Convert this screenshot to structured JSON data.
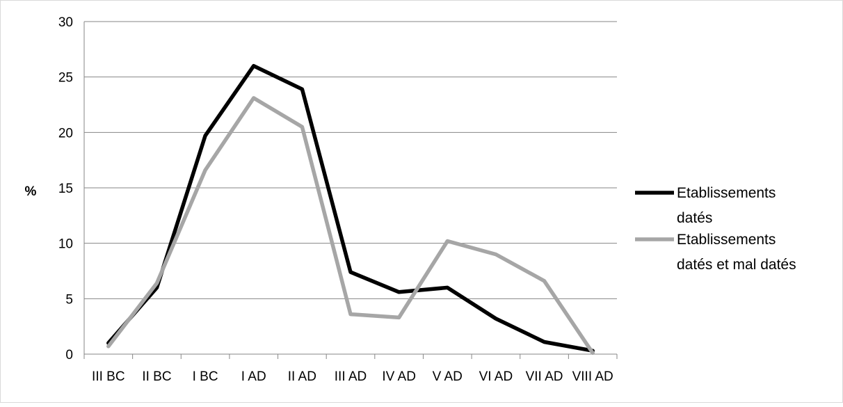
{
  "chart_data": {
    "type": "line",
    "title": "",
    "xlabel": "",
    "ylabel": "%",
    "ylim": [
      0,
      30
    ],
    "yticks": [
      0,
      5,
      10,
      15,
      20,
      25,
      30
    ],
    "grid": true,
    "legend_position": "right",
    "categories": [
      "III BC",
      "II BC",
      "I BC",
      "I AD",
      "II AD",
      "III AD",
      "IV AD",
      "V AD",
      "VI AD",
      "VII AD",
      "VIII AD"
    ],
    "series": [
      {
        "name": "Etablissements datés",
        "color": "#000000",
        "values": [
          1.0,
          6.0,
          19.7,
          26.0,
          23.9,
          7.4,
          5.6,
          6.0,
          3.2,
          1.1,
          0.3
        ],
        "legend_lines": [
          "Etablissements",
          "datés"
        ]
      },
      {
        "name": "Etablissements datés et mal datés",
        "color": "#a6a6a6",
        "values": [
          0.7,
          6.4,
          16.6,
          23.1,
          20.5,
          3.6,
          3.3,
          10.2,
          9.0,
          6.6,
          0.1
        ],
        "legend_lines": [
          "Etablissements",
          "datés et mal datés"
        ]
      }
    ]
  }
}
